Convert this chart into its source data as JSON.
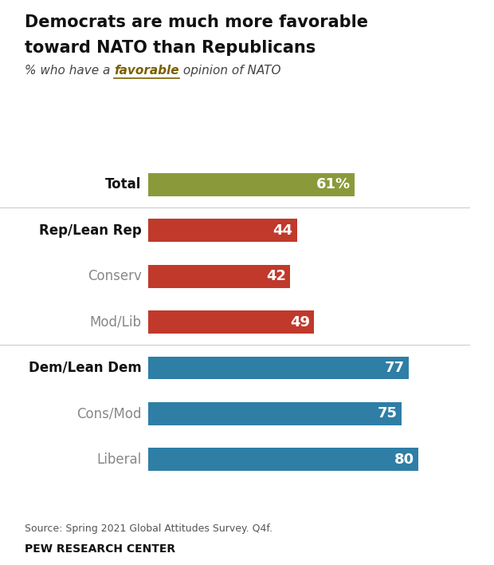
{
  "title_line1": "Democrats are much more favorable",
  "title_line2": "toward NATO than Republicans",
  "subtitle_plain1": "% who have a ",
  "subtitle_bold_italic": "favorable",
  "subtitle_plain2": " opinion of NATO",
  "source": "Source: Spring 2021 Global Attitudes Survey. Q4f.",
  "footer": "PEW RESEARCH CENTER",
  "categories": [
    "Liberal",
    "Cons/Mod",
    "Dem/Lean Dem",
    "Mod/Lib",
    "Conserv",
    "Rep/Lean Rep",
    "Total"
  ],
  "values": [
    80,
    75,
    77,
    49,
    42,
    44,
    61
  ],
  "colors": [
    "#2e7ea6",
    "#2e7ea6",
    "#2e7ea6",
    "#c0392b",
    "#c0392b",
    "#c0392b",
    "#8a9a3a"
  ],
  "label_bold": [
    false,
    false,
    true,
    false,
    false,
    true,
    true
  ],
  "label_color": [
    "#888888",
    "#888888",
    "#111111",
    "#888888",
    "#888888",
    "#111111",
    "#111111"
  ],
  "value_suffix": [
    "",
    "",
    "",
    "",
    "",
    "",
    "%"
  ],
  "background_color": "#ffffff",
  "bar_height": 0.5,
  "xlim": [
    0,
    95
  ],
  "favorable_color": "#7a6000"
}
